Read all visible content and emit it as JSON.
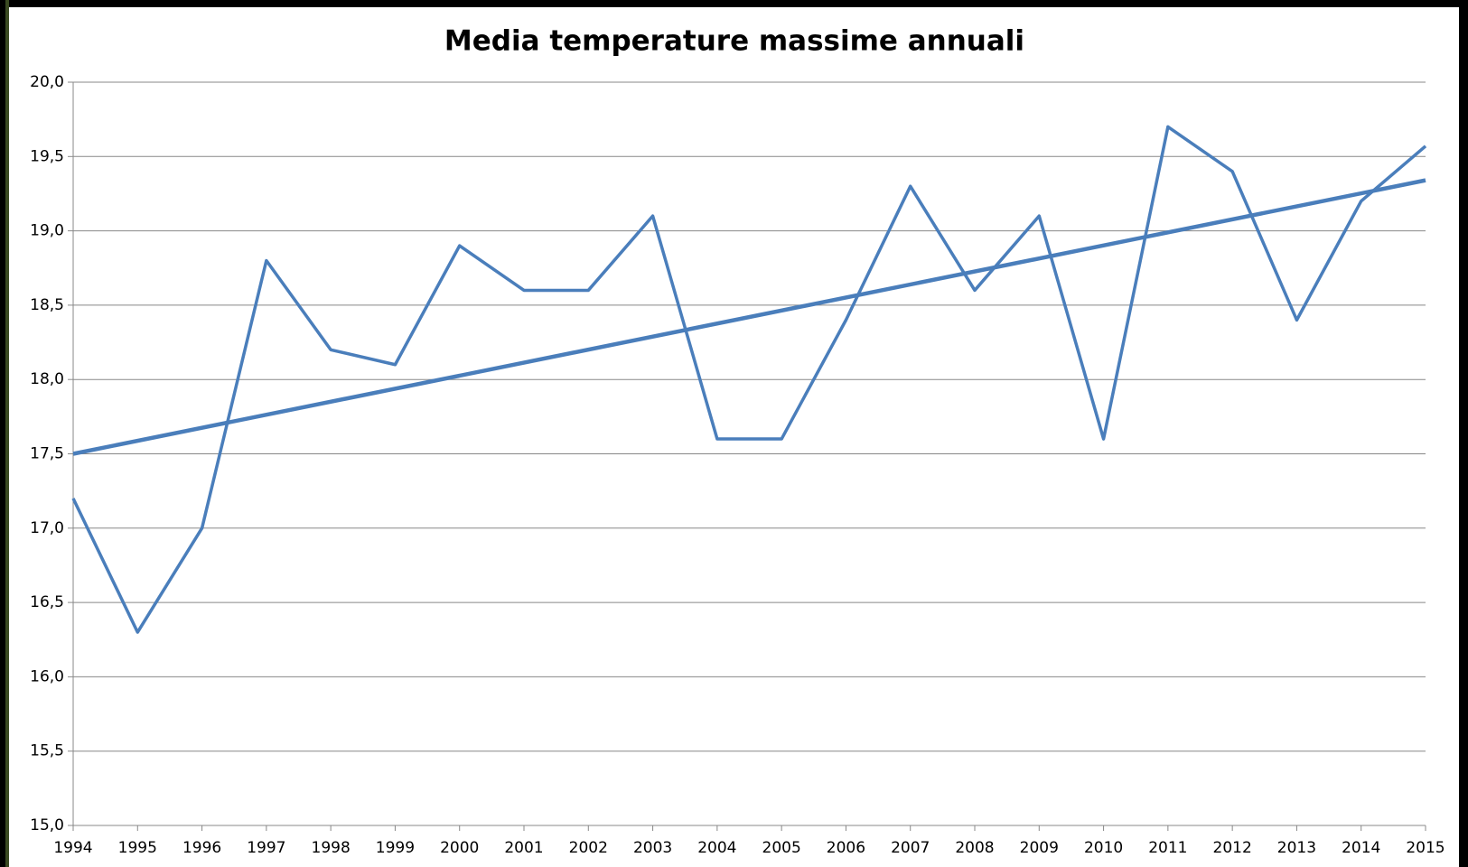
{
  "chart_data": {
    "type": "line",
    "title": "Media temperature massime annuali",
    "x": [
      1994,
      1995,
      1996,
      1997,
      1998,
      1999,
      2000,
      2001,
      2002,
      2003,
      2004,
      2005,
      2006,
      2007,
      2008,
      2009,
      2010,
      2011,
      2012,
      2013,
      2014,
      2015
    ],
    "series": [
      {
        "color": "#4a7ebb",
        "values": [
          17.2,
          16.3,
          17.0,
          18.8,
          18.2,
          18.1,
          18.9,
          18.6,
          18.6,
          19.1,
          17.6,
          17.6,
          18.4,
          19.3,
          18.6,
          19.1,
          17.6,
          19.7,
          19.4,
          18.4,
          19.2,
          19.57
        ]
      }
    ],
    "trend": {
      "color": "#4a7ebb",
      "x": [
        1994,
        2015
      ],
      "values": [
        17.5,
        19.34
      ]
    },
    "xlim": [
      1994,
      2015
    ],
    "xticks": [
      1994,
      1995,
      1996,
      1997,
      1998,
      1999,
      2000,
      2001,
      2002,
      2003,
      2004,
      2005,
      2006,
      2007,
      2008,
      2009,
      2010,
      2011,
      2012,
      2013,
      2014,
      2015
    ],
    "ylim": [
      15,
      20
    ],
    "yticks": [
      {
        "value": 15,
        "label": "15,0"
      },
      {
        "value": 15.5,
        "label": "15,5"
      },
      {
        "value": 16,
        "label": "16,0"
      },
      {
        "value": 16.5,
        "label": "16,5"
      },
      {
        "value": 17,
        "label": "17,0"
      },
      {
        "value": 17.5,
        "label": "17,5"
      },
      {
        "value": 18,
        "label": "18,0"
      },
      {
        "value": 18.5,
        "label": "18,5"
      },
      {
        "value": 19,
        "label": "19,0"
      },
      {
        "value": 19.5,
        "label": "19,5"
      },
      {
        "value": 20,
        "label": "20,0"
      }
    ],
    "grid": true
  }
}
